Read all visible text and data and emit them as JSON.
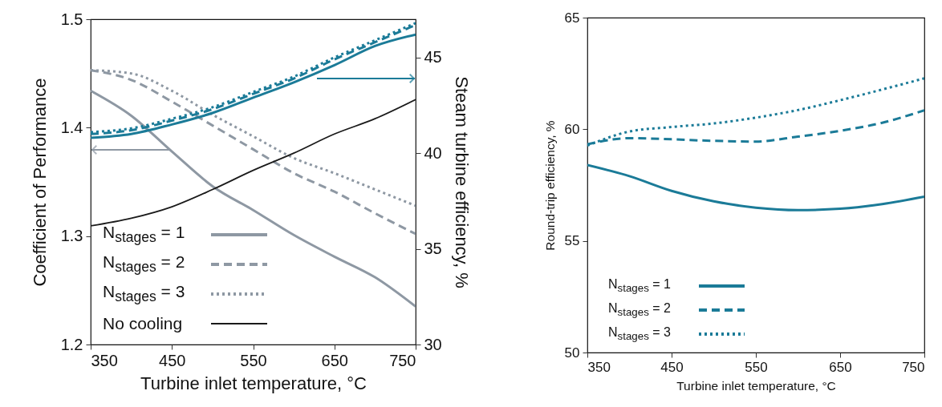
{
  "chart_data": [
    {
      "type": "line",
      "xlabel": "Turbine inlet temperature, °C",
      "ylabel": "Coefficient of Performance",
      "y2label": "Steam turbine efficiency, %",
      "x": [
        350,
        400,
        450,
        500,
        550,
        600,
        650,
        700,
        750
      ],
      "xlim": [
        350,
        750
      ],
      "xticks": [
        350,
        450,
        550,
        650,
        750
      ],
      "ylim": [
        1.2,
        1.5
      ],
      "yticks": [
        1.2,
        1.3,
        1.4,
        1.5
      ],
      "y2lim": [
        30,
        47
      ],
      "y2ticks": [
        30,
        35,
        40,
        45
      ],
      "legend": "bottom left",
      "series": [
        {
          "name": "N$_{stages}$ = 1",
          "color": "#8e98a3",
          "line_style": "solid",
          "values": [
            1.434,
            1.411,
            1.378,
            1.346,
            1.324,
            1.301,
            1.281,
            1.262,
            1.235
          ]
        },
        {
          "name": "N$_{stages}$ = 2",
          "color": "#8e98a3",
          "line_style": "dashed",
          "values": [
            1.453,
            1.444,
            1.424,
            1.402,
            1.38,
            1.358,
            1.341,
            1.321,
            1.302
          ]
        },
        {
          "name": "N$_{stages}$ = 3",
          "color": "#8e98a3",
          "line_style": "dotted",
          "values": [
            1.453,
            1.45,
            1.434,
            1.412,
            1.392,
            1.372,
            1.358,
            1.343,
            1.328
          ]
        },
        {
          "name": "No cooling",
          "color": "#1a1a1a",
          "line_style": "solid",
          "axis": "y2",
          "values": [
            36.2,
            36.6,
            37.2,
            38.1,
            39.1,
            40.0,
            41.0,
            41.8,
            42.8
          ]
        },
        {
          "color": "#1b7b98",
          "line_style": "solid",
          "axis": "y2",
          "values": [
            40.8,
            41.0,
            41.5,
            42.1,
            42.9,
            43.7,
            44.6,
            45.6,
            46.2
          ]
        },
        {
          "color": "#1b7b98",
          "line_style": "dashed",
          "axis": "y2",
          "values": [
            41.0,
            41.2,
            41.7,
            42.3,
            43.1,
            43.9,
            44.9,
            45.8,
            46.7
          ]
        },
        {
          "color": "#1b7b98",
          "line_style": "dotted",
          "axis": "y2",
          "values": [
            41.1,
            41.3,
            41.8,
            42.4,
            43.2,
            44.0,
            45.0,
            45.9,
            46.8
          ]
        }
      ]
    },
    {
      "type": "line",
      "xlabel": "Turbine inlet temperature, °C",
      "ylabel": "Round-trip efficiency, %",
      "x": [
        350,
        400,
        450,
        500,
        550,
        600,
        650,
        700,
        750
      ],
      "xlim": [
        350,
        750
      ],
      "xticks": [
        350,
        450,
        550,
        650,
        750
      ],
      "ylim": [
        50,
        65
      ],
      "yticks": [
        50,
        55,
        60,
        65
      ],
      "legend": "bottom left",
      "series": [
        {
          "name": "N$_{stages}$ = 1",
          "color": "#1b7b98",
          "line_style": "solid",
          "values": [
            58.4,
            57.9,
            57.24,
            56.77,
            56.49,
            56.38,
            56.44,
            56.65,
            56.98
          ]
        },
        {
          "name": "N$_{stages}$ = 2",
          "color": "#1b7b98",
          "line_style": "dashed",
          "values": [
            59.33,
            59.6,
            59.55,
            59.48,
            59.45,
            59.67,
            59.93,
            60.29,
            60.85
          ]
        },
        {
          "name": "N$_{stages}$ = 3",
          "color": "#1b7b98",
          "line_style": "dotted",
          "values": [
            59.27,
            59.9,
            60.1,
            60.26,
            60.52,
            60.86,
            61.3,
            61.78,
            62.28
          ]
        }
      ]
    }
  ]
}
